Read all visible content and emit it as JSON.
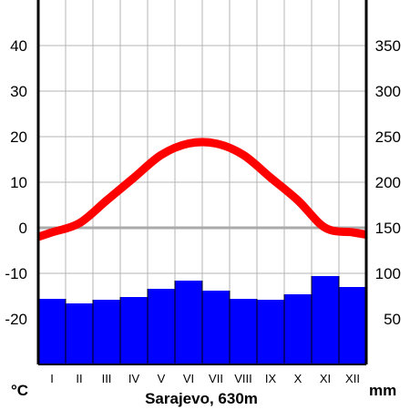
{
  "chart_data": {
    "type": "climate-diagram",
    "caption": "Sarajevo, 630m",
    "left_unit": "°C",
    "right_unit": "mm",
    "categories": [
      "I",
      "II",
      "III",
      "IV",
      "V",
      "VI",
      "VII",
      "VIII",
      "IX",
      "X",
      "XI",
      "XII"
    ],
    "temperature": {
      "values": [
        -1,
        1,
        6,
        11,
        16,
        18.5,
        18.5,
        16,
        11,
        6,
        0,
        -1
      ],
      "color": "#ff0000",
      "axis_ticks": [
        -20,
        -10,
        0,
        10,
        20,
        30,
        40
      ],
      "axis_labels": [
        "-20",
        "-10",
        "0",
        "10",
        "20",
        "30",
        "40"
      ],
      "ylim": [
        -30,
        50
      ]
    },
    "precipitation": {
      "values": [
        72,
        67,
        71,
        74,
        83,
        92,
        81,
        72,
        71,
        77,
        97,
        85
      ],
      "color": "#0000ff",
      "axis_ticks": [
        50,
        100,
        150,
        200,
        250,
        300,
        350
      ],
      "axis_labels": [
        "50",
        "100",
        "150",
        "200",
        "250",
        "300",
        "350"
      ],
      "ylim": [
        0,
        400
      ]
    },
    "grid": true,
    "zero_line_color": "#aaaaaa"
  }
}
